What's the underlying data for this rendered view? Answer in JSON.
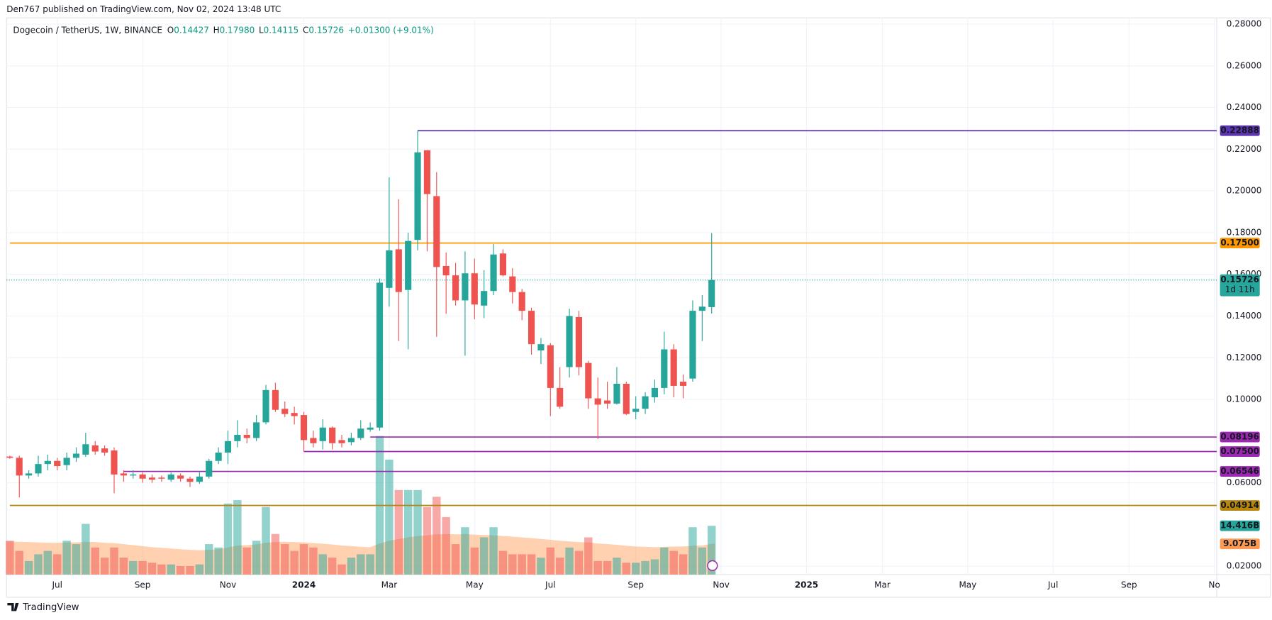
{
  "header": "Den767 published on TradingView.com, Nov 02, 2024 13:48 UTC",
  "footer": "TradingView",
  "chart_data": {
    "type": "candlestick",
    "title": "Dogecoin / TetherUS, 1W, BINANCE",
    "legend_values": [
      {
        "key": "O",
        "text": "0.14427"
      },
      {
        "key": "H",
        "text": "0.17980"
      },
      {
        "key": "L",
        "text": "0.14115"
      },
      {
        "key": "C",
        "text": "0.15726"
      }
    ],
    "change": "+0.01300 (+9.01%)",
    "up_color": "#26a69a",
    "down_color": "#ef5350",
    "legend_color": "#089981",
    "grid": true,
    "categories": [
      null,
      null,
      null,
      null,
      null,
      "Jul",
      null,
      null,
      null,
      null,
      null,
      null,
      null,
      null,
      "Sep",
      null,
      null,
      null,
      null,
      null,
      null,
      null,
      null,
      "Nov",
      null,
      null,
      null,
      null,
      null,
      null,
      null,
      "2024",
      null,
      null,
      null,
      null,
      null,
      null,
      null,
      null,
      "Mar",
      null,
      null,
      null,
      null,
      null,
      null,
      null,
      null,
      "May",
      null,
      null,
      null,
      null,
      null,
      null,
      null,
      "Jul",
      null,
      null,
      null,
      null,
      null,
      null,
      null,
      null,
      "Sep",
      null,
      null,
      null,
      null,
      null,
      null,
      null,
      null,
      "Nov",
      null,
      null,
      null,
      null,
      null,
      null,
      null,
      null,
      "2025",
      null,
      null,
      null,
      null,
      null,
      null,
      null,
      "Mar",
      null,
      null,
      null,
      null,
      null,
      null,
      null,
      null,
      "May",
      null,
      null,
      null,
      null,
      null,
      null,
      null,
      null,
      "Jul",
      null,
      null,
      null,
      null,
      null,
      null,
      null,
      "Sep",
      null,
      null,
      null,
      null,
      null,
      null,
      null,
      null,
      "No"
    ],
    "ohlc": {
      "open": [
        0.0726,
        0.072,
        0.0635,
        0.0645,
        0.069,
        0.0705,
        0.0685,
        0.072,
        0.0735,
        0.078,
        0.0765,
        0.0755,
        0.0645,
        0.0635,
        0.064,
        0.0625,
        0.0625,
        0.0615,
        0.0635,
        0.062,
        0.0605,
        0.063,
        0.0705,
        0.0745,
        0.08,
        0.083,
        0.0815,
        0.089,
        0.1045,
        0.0955,
        0.0935,
        0.0925,
        0.0815,
        0.08,
        0.0865,
        0.0805,
        0.0795,
        0.0815,
        0.0855,
        0.0865,
        0.1535,
        0.172,
        0.1525,
        0.1765,
        0.2195,
        0.1975,
        0.164,
        0.1595,
        0.1475,
        0.1605,
        0.145,
        0.152,
        0.17,
        0.159,
        0.1515,
        0.1425,
        0.1235,
        0.126,
        0.1055,
        0.1155,
        0.1395,
        0.1175,
        0.1005,
        0.0995,
        0.098,
        0.1075,
        0.094,
        0.0955,
        0.101,
        0.1055,
        0.124,
        0.1085,
        0.11,
        0.1425,
        0.14427,
        null,
        null,
        null,
        null,
        null,
        null,
        null,
        null,
        null,
        null,
        null,
        null,
        null,
        null,
        null,
        null,
        null,
        null,
        null,
        null,
        null,
        null,
        null,
        null,
        null,
        null,
        null,
        null,
        null,
        null,
        null,
        null,
        null,
        null,
        null,
        null,
        null,
        null,
        null,
        null,
        null,
        null,
        null,
        null,
        null,
        null,
        null,
        null,
        null,
        null,
        null,
        null,
        null
      ],
      "high": [
        0.073,
        0.073,
        0.066,
        0.073,
        0.0735,
        0.072,
        0.0745,
        0.077,
        0.084,
        0.08,
        0.078,
        0.077,
        0.066,
        0.066,
        0.065,
        0.064,
        0.0635,
        0.065,
        0.0645,
        0.063,
        0.0655,
        0.0715,
        0.077,
        0.085,
        0.09,
        0.086,
        0.0925,
        0.107,
        0.108,
        0.099,
        0.0965,
        0.094,
        0.085,
        0.0905,
        0.087,
        0.083,
        0.084,
        0.09,
        0.089,
        0.158,
        0.2065,
        0.196,
        0.18,
        0.22888,
        0.2195,
        0.209,
        0.1705,
        0.1655,
        0.171,
        0.1675,
        0.162,
        0.1745,
        0.172,
        0.163,
        0.153,
        0.144,
        0.1295,
        0.127,
        0.1155,
        0.1435,
        0.1425,
        0.1185,
        0.1105,
        0.1085,
        0.1155,
        0.1085,
        0.1015,
        0.1035,
        0.1095,
        0.1325,
        0.1265,
        0.112,
        0.1475,
        0.15,
        0.1798,
        null,
        null,
        null,
        null,
        null,
        null,
        null,
        null,
        null,
        null,
        null,
        null,
        null,
        null,
        null,
        null,
        null,
        null,
        null,
        null,
        null,
        null,
        null,
        null,
        null,
        null,
        null,
        null,
        null,
        null,
        null,
        null,
        null,
        null,
        null,
        null,
        null,
        null,
        null,
        null,
        null,
        null,
        null,
        null,
        null,
        null,
        null,
        null,
        null,
        null,
        null,
        null,
        null
      ],
      "low": [
        0.0715,
        0.053,
        0.062,
        0.063,
        0.066,
        0.066,
        0.066,
        0.07,
        0.0725,
        0.0735,
        0.073,
        0.055,
        0.0605,
        0.062,
        0.06,
        0.06,
        0.0605,
        0.0605,
        0.0605,
        0.058,
        0.0595,
        0.062,
        0.069,
        0.069,
        0.077,
        0.079,
        0.08,
        0.088,
        0.094,
        0.0915,
        0.088,
        0.075,
        0.077,
        0.076,
        0.076,
        0.077,
        0.078,
        0.0805,
        0.0845,
        0.085,
        0.1445,
        0.128,
        0.124,
        0.1715,
        0.171,
        0.13,
        0.141,
        0.145,
        0.121,
        0.1385,
        0.139,
        0.15,
        0.159,
        0.146,
        0.138,
        0.1215,
        0.117,
        0.092,
        0.0955,
        0.1105,
        0.1115,
        0.0955,
        0.081,
        0.0955,
        0.0975,
        0.0925,
        0.0905,
        0.093,
        0.0985,
        0.1025,
        0.101,
        0.1005,
        0.1085,
        0.128,
        0.14115,
        null,
        null,
        null,
        null,
        null,
        null,
        null,
        null,
        null,
        null,
        null,
        null,
        null,
        null,
        null,
        null,
        null,
        null,
        null,
        null,
        null,
        null,
        null,
        null,
        null,
        null,
        null,
        null,
        null,
        null,
        null,
        null,
        null,
        null,
        null,
        null,
        null,
        null,
        null,
        null,
        null,
        null,
        null,
        null,
        null,
        null,
        null,
        null,
        null,
        null,
        null,
        null,
        null
      ],
      "close": [
        0.072,
        0.0635,
        0.0645,
        0.069,
        0.0705,
        0.068,
        0.072,
        0.074,
        0.0785,
        0.075,
        0.0745,
        0.064,
        0.0635,
        0.064,
        0.062,
        0.0615,
        0.062,
        0.064,
        0.062,
        0.0605,
        0.063,
        0.0705,
        0.0745,
        0.08,
        0.083,
        0.0815,
        0.089,
        0.1045,
        0.095,
        0.093,
        0.092,
        0.0805,
        0.079,
        0.0865,
        0.079,
        0.079,
        0.0815,
        0.086,
        0.0865,
        0.156,
        0.1715,
        0.1515,
        0.176,
        0.2185,
        0.1985,
        0.1635,
        0.1595,
        0.1475,
        0.1605,
        0.1455,
        0.152,
        0.1695,
        0.1595,
        0.1515,
        0.1425,
        0.1265,
        0.1265,
        0.1055,
        0.0965,
        0.14,
        0.1155,
        0.1005,
        0.0975,
        0.098,
        0.1075,
        0.093,
        0.0955,
        0.1015,
        0.1055,
        0.124,
        0.1065,
        0.1065,
        0.1425,
        0.1445,
        0.15726,
        null,
        null,
        null,
        null,
        null,
        null,
        null,
        null,
        null,
        null,
        null,
        null,
        null,
        null,
        null,
        null,
        null,
        null,
        null,
        null,
        null,
        null,
        null,
        null,
        null,
        null,
        null,
        null,
        null,
        null,
        null,
        null,
        null,
        null,
        null,
        null,
        null,
        null,
        null,
        null,
        null,
        null,
        null,
        null,
        null,
        null,
        null,
        null,
        null,
        null,
        null,
        null,
        null
      ]
    },
    "ylim": [
      0.016,
      0.283
    ],
    "yticks": [
      {
        "value": 0.28,
        "label": "0.28000"
      },
      {
        "value": 0.26,
        "label": "0.26000"
      },
      {
        "value": 0.24,
        "label": "0.24000"
      },
      {
        "value": 0.22,
        "label": "0.22000"
      },
      {
        "value": 0.2,
        "label": "0.20000"
      },
      {
        "value": 0.18,
        "label": "0.18000"
      },
      {
        "value": 0.16,
        "label": "0.16000"
      },
      {
        "value": 0.14,
        "label": "0.14000"
      },
      {
        "value": 0.12,
        "label": "0.12000"
      },
      {
        "value": 0.1,
        "label": "0.10000"
      },
      {
        "value": 0.06,
        "label": "0.06000"
      },
      {
        "value": 0.02,
        "label": "0.02000"
      }
    ],
    "levels": [
      {
        "value": 0.22888,
        "label": "0.22888",
        "color": "#5e35b1",
        "x_start": 43
      },
      {
        "value": 0.175,
        "label": "0.17500",
        "color": "#ff9800",
        "x_start": 0
      },
      {
        "value": 0.08196,
        "label": "0.08196",
        "color": "#9c27b0",
        "x_start": 38
      },
      {
        "value": 0.075,
        "label": "0.07500",
        "color": "#9c27b0",
        "x_start": 31
      },
      {
        "value": 0.06546,
        "label": "0.06546",
        "color": "#9c27b0",
        "x_start": 12
      },
      {
        "value": 0.04914,
        "label": "0.04914",
        "color": "#b8860b",
        "x_start": 0
      }
    ],
    "last": {
      "value": 0.15726,
      "label": "0.15726",
      "countdown": "1d 11h"
    },
    "volume": {
      "ylim": [
        0,
        42
      ],
      "values": [
        10,
        7,
        4,
        6,
        7,
        6,
        10,
        9,
        15,
        8,
        5,
        8,
        5,
        4,
        4,
        3.5,
        3,
        3,
        2.5,
        2.5,
        3,
        9,
        8,
        21,
        22,
        8,
        10,
        20,
        12,
        9,
        7,
        9,
        8,
        6,
        5,
        3,
        5,
        6,
        6,
        41,
        34,
        25,
        25,
        25,
        20,
        23,
        17,
        9,
        14,
        8,
        11,
        14,
        7,
        6,
        6,
        6,
        5,
        8,
        5,
        8,
        7,
        11,
        4,
        4,
        5,
        3.5,
        3.5,
        4,
        4.5,
        8,
        7,
        6,
        14,
        8,
        14.416,
        null,
        null,
        null,
        null,
        null,
        null,
        null,
        null,
        null,
        null,
        null,
        null,
        null,
        null,
        null,
        null,
        null,
        null,
        null,
        null,
        null,
        null,
        null,
        null,
        null,
        null,
        null,
        null,
        null,
        null,
        null,
        null,
        null,
        null,
        null,
        null,
        null,
        null,
        null,
        null,
        null,
        null,
        null,
        null,
        null,
        null,
        null,
        null,
        null,
        null,
        null,
        null,
        null
      ],
      "last_label": "14.416B",
      "ma_values": [
        9.8,
        9.7,
        9.6,
        9.5,
        9.4,
        9.4,
        9.5,
        9.5,
        9.7,
        9.6,
        9.4,
        9.3,
        9.0,
        8.7,
        8.4,
        8.1,
        7.9,
        7.7,
        7.5,
        7.3,
        7.2,
        7.3,
        7.5,
        8.0,
        8.6,
        8.7,
        8.9,
        9.4,
        9.6,
        9.7,
        9.6,
        9.5,
        9.3,
        9.1,
        8.9,
        8.6,
        8.4,
        8.2,
        8.1,
        9.2,
        10.0,
        10.5,
        11.0,
        11.4,
        11.6,
        11.9,
        12.0,
        11.9,
        12.0,
        11.8,
        11.7,
        11.6,
        11.4,
        11.2,
        11.0,
        10.8,
        10.5,
        10.3,
        10.0,
        9.8,
        9.6,
        9.5,
        9.2,
        9.0,
        8.8,
        8.5,
        8.3,
        8.2,
        8.1,
        8.2,
        8.3,
        8.3,
        8.5,
        8.6,
        9.075,
        null,
        null,
        null,
        null,
        null,
        null,
        null,
        null,
        null,
        null,
        null,
        null,
        null,
        null,
        null,
        null,
        null,
        null,
        null,
        null,
        null,
        null,
        null,
        null,
        null,
        null,
        null,
        null,
        null,
        null,
        null,
        null,
        null,
        null,
        null,
        null,
        null,
        null,
        null,
        null,
        null,
        null,
        null,
        null,
        null,
        null,
        null,
        null,
        null,
        null,
        null,
        null,
        null
      ],
      "ma_last_label": "9.075B",
      "ma_color": "#ff9a52"
    }
  }
}
